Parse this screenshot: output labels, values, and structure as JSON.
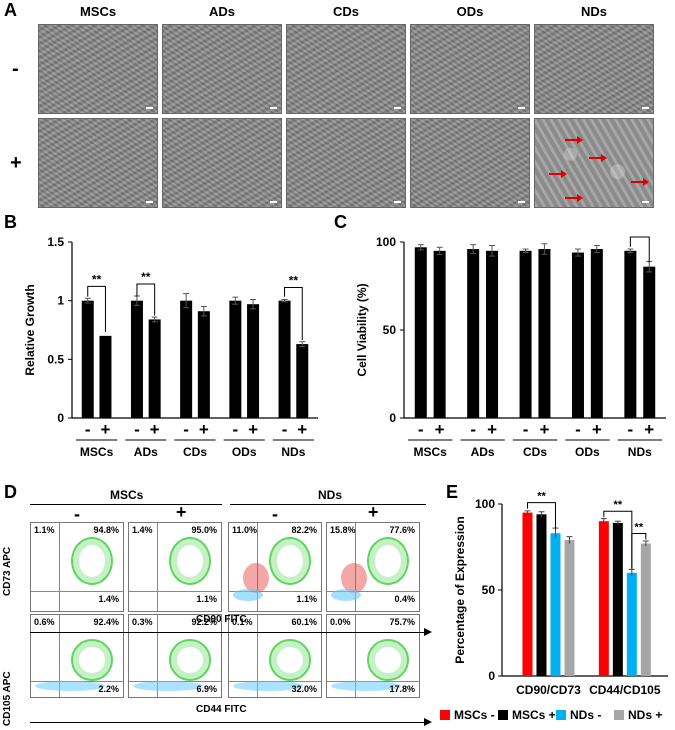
{
  "panel_labels": {
    "a": "A",
    "b": "B",
    "c": "C",
    "d": "D",
    "e": "E"
  },
  "panel_a": {
    "columns": [
      "MSCs",
      "ADs",
      "CDs",
      "ODs",
      "NDs"
    ],
    "rows": [
      "-",
      "+"
    ]
  },
  "colors": {
    "bar": "#000000",
    "red": "#ff0000",
    "black": "#000000",
    "blue": "#00b0f0",
    "gray": "#a6a6a6",
    "arrow": "#e00000"
  },
  "chart_data": [
    {
      "type": "bar",
      "panel": "B",
      "ylabel": "Relative Growth",
      "ylim": [
        0,
        1.5
      ],
      "yticks": [
        "0",
        "0.5",
        "1",
        "1.5"
      ],
      "groups": [
        "MSCs",
        "ADs",
        "CDs",
        "ODs",
        "NDs"
      ],
      "conditions": [
        "-",
        "+"
      ],
      "values": [
        1.0,
        0.7,
        1.0,
        0.84,
        1.0,
        0.91,
        1.0,
        0.97,
        1.0,
        0.63
      ],
      "errors": [
        0.02,
        0.0,
        0.04,
        0.02,
        0.06,
        0.04,
        0.03,
        0.04,
        0.01,
        0.02
      ],
      "significance": [
        {
          "group": "MSCs",
          "label": "**"
        },
        {
          "group": "ADs",
          "label": "**"
        },
        {
          "group": "NDs",
          "label": "**"
        }
      ]
    },
    {
      "type": "bar",
      "panel": "C",
      "ylabel": "Cell Viability (%)",
      "ylim": [
        0,
        100
      ],
      "yticks": [
        "0",
        "50",
        "100"
      ],
      "groups": [
        "MSCs",
        "ADs",
        "CDs",
        "ODs",
        "NDs"
      ],
      "conditions": [
        "-",
        "+"
      ],
      "values": [
        97,
        95,
        96,
        95,
        95,
        96,
        94,
        96,
        95,
        86
      ],
      "errors": [
        1.5,
        2,
        2.5,
        3,
        1,
        3,
        2,
        2,
        1,
        3
      ],
      "significance": [
        {
          "group": "NDs",
          "label": "**"
        }
      ]
    },
    {
      "type": "bar",
      "panel": "E",
      "ylabel": "Percentage of Expression",
      "ylim": [
        0,
        100
      ],
      "yticks": [
        "0",
        "50",
        "100"
      ],
      "categories": [
        "CD90/CD73",
        "CD44/CD105"
      ],
      "series": [
        {
          "name": "MSCs -",
          "color": "#ff0000",
          "values": [
            95,
            90
          ]
        },
        {
          "name": "MSCs +",
          "color": "#000000",
          "values": [
            94,
            89
          ]
        },
        {
          "name": "NDs -",
          "color": "#00b0f0",
          "values": [
            83,
            60
          ]
        },
        {
          "name": "NDs +",
          "color": "#a6a6a6",
          "values": [
            79,
            77
          ]
        }
      ],
      "errors": [
        [
          1,
          1.5,
          3,
          2
        ],
        [
          1.5,
          1,
          2,
          1.5
        ]
      ],
      "significance": [
        {
          "category": "CD90/CD73",
          "between": [
            "MSCs -",
            "NDs -"
          ],
          "label": "**"
        },
        {
          "category": "CD44/CD105",
          "between": [
            "MSCs -",
            "NDs -"
          ],
          "label": "**"
        },
        {
          "category": "CD44/CD105",
          "between": [
            "NDs -",
            "NDs +"
          ],
          "label": "**"
        }
      ]
    }
  ],
  "panel_d": {
    "headers": [
      "MSCs",
      "NDs"
    ],
    "signs": [
      "-",
      "+",
      "-",
      "+"
    ],
    "row1": {
      "ylabel": "CD73 APC",
      "xlabel": "CD90 FITC",
      "plots": [
        {
          "ul": "1.1%",
          "ur": "94.8%",
          "lr": "1.4%"
        },
        {
          "ul": "1.4%",
          "ur": "95.0%",
          "lr": "1.1%"
        },
        {
          "ul": "11.0%",
          "ur": "82.2%",
          "lr": "1.1%"
        },
        {
          "ul": "15.8%",
          "ur": "77.6%",
          "lr": "0.4%"
        }
      ]
    },
    "row2": {
      "ylabel": "CD105 APC",
      "xlabel": "CD44 FITC",
      "plots": [
        {
          "ul": "0.6%",
          "ur": "92.4%",
          "lr": "2.2%"
        },
        {
          "ul": "0.3%",
          "ur": "92.2%",
          "lr": "6.9%"
        },
        {
          "ul": "0.1%",
          "ur": "60.1%",
          "lr": "32.0%"
        },
        {
          "ul": "0.0%",
          "ur": "75.7%",
          "lr": "17.8%"
        }
      ]
    }
  }
}
